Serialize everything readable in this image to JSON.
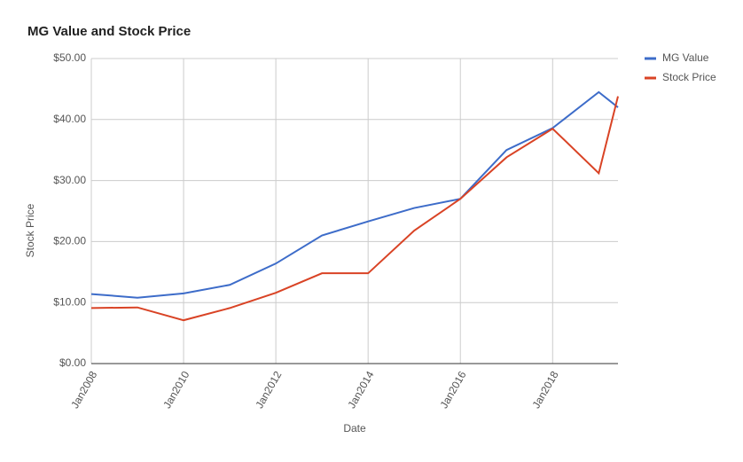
{
  "chart_data": {
    "type": "line",
    "title": "MG Value and Stock Price",
    "x_label": "Date",
    "y_label": "Stock Price",
    "x": [
      "2008-01",
      "2009-01",
      "2010-01",
      "2011-01",
      "2012-01",
      "2013-01",
      "2014-01",
      "2015-01",
      "2016-01",
      "2017-01",
      "2018-01",
      "2019-01",
      "2019-06"
    ],
    "series": [
      {
        "name": "MG Value",
        "color": "#3d6cc9",
        "values": [
          11.4,
          10.8,
          11.5,
          12.9,
          16.4,
          21.0,
          23.3,
          25.5,
          27.0,
          35.0,
          38.6,
          44.5,
          42.0
        ]
      },
      {
        "name": "Stock Price",
        "color": "#d94325",
        "values": [
          9.1,
          9.2,
          7.1,
          9.1,
          11.6,
          14.8,
          14.8,
          21.8,
          27.0,
          33.8,
          38.5,
          31.2,
          43.8
        ]
      }
    ],
    "xlim": [
      "2008-01",
      "2019-06"
    ],
    "xticks": [
      {
        "value": "2008-01",
        "label": "Jan2008"
      },
      {
        "value": "2010-01",
        "label": "Jan2010"
      },
      {
        "value": "2012-01",
        "label": "Jan2012"
      },
      {
        "value": "2014-01",
        "label": "Jan2014"
      },
      {
        "value": "2016-01",
        "label": "Jan2016"
      },
      {
        "value": "2018-01",
        "label": "Jan2018"
      }
    ],
    "ylim": [
      0,
      50
    ],
    "yticks": [
      {
        "value": 0,
        "label": "$0.00"
      },
      {
        "value": 10,
        "label": "$10.00"
      },
      {
        "value": 20,
        "label": "$20.00"
      },
      {
        "value": 30,
        "label": "$30.00"
      },
      {
        "value": 40,
        "label": "$40.00"
      },
      {
        "value": 50,
        "label": "$50.00"
      }
    ],
    "grid": true,
    "legend": "right"
  }
}
